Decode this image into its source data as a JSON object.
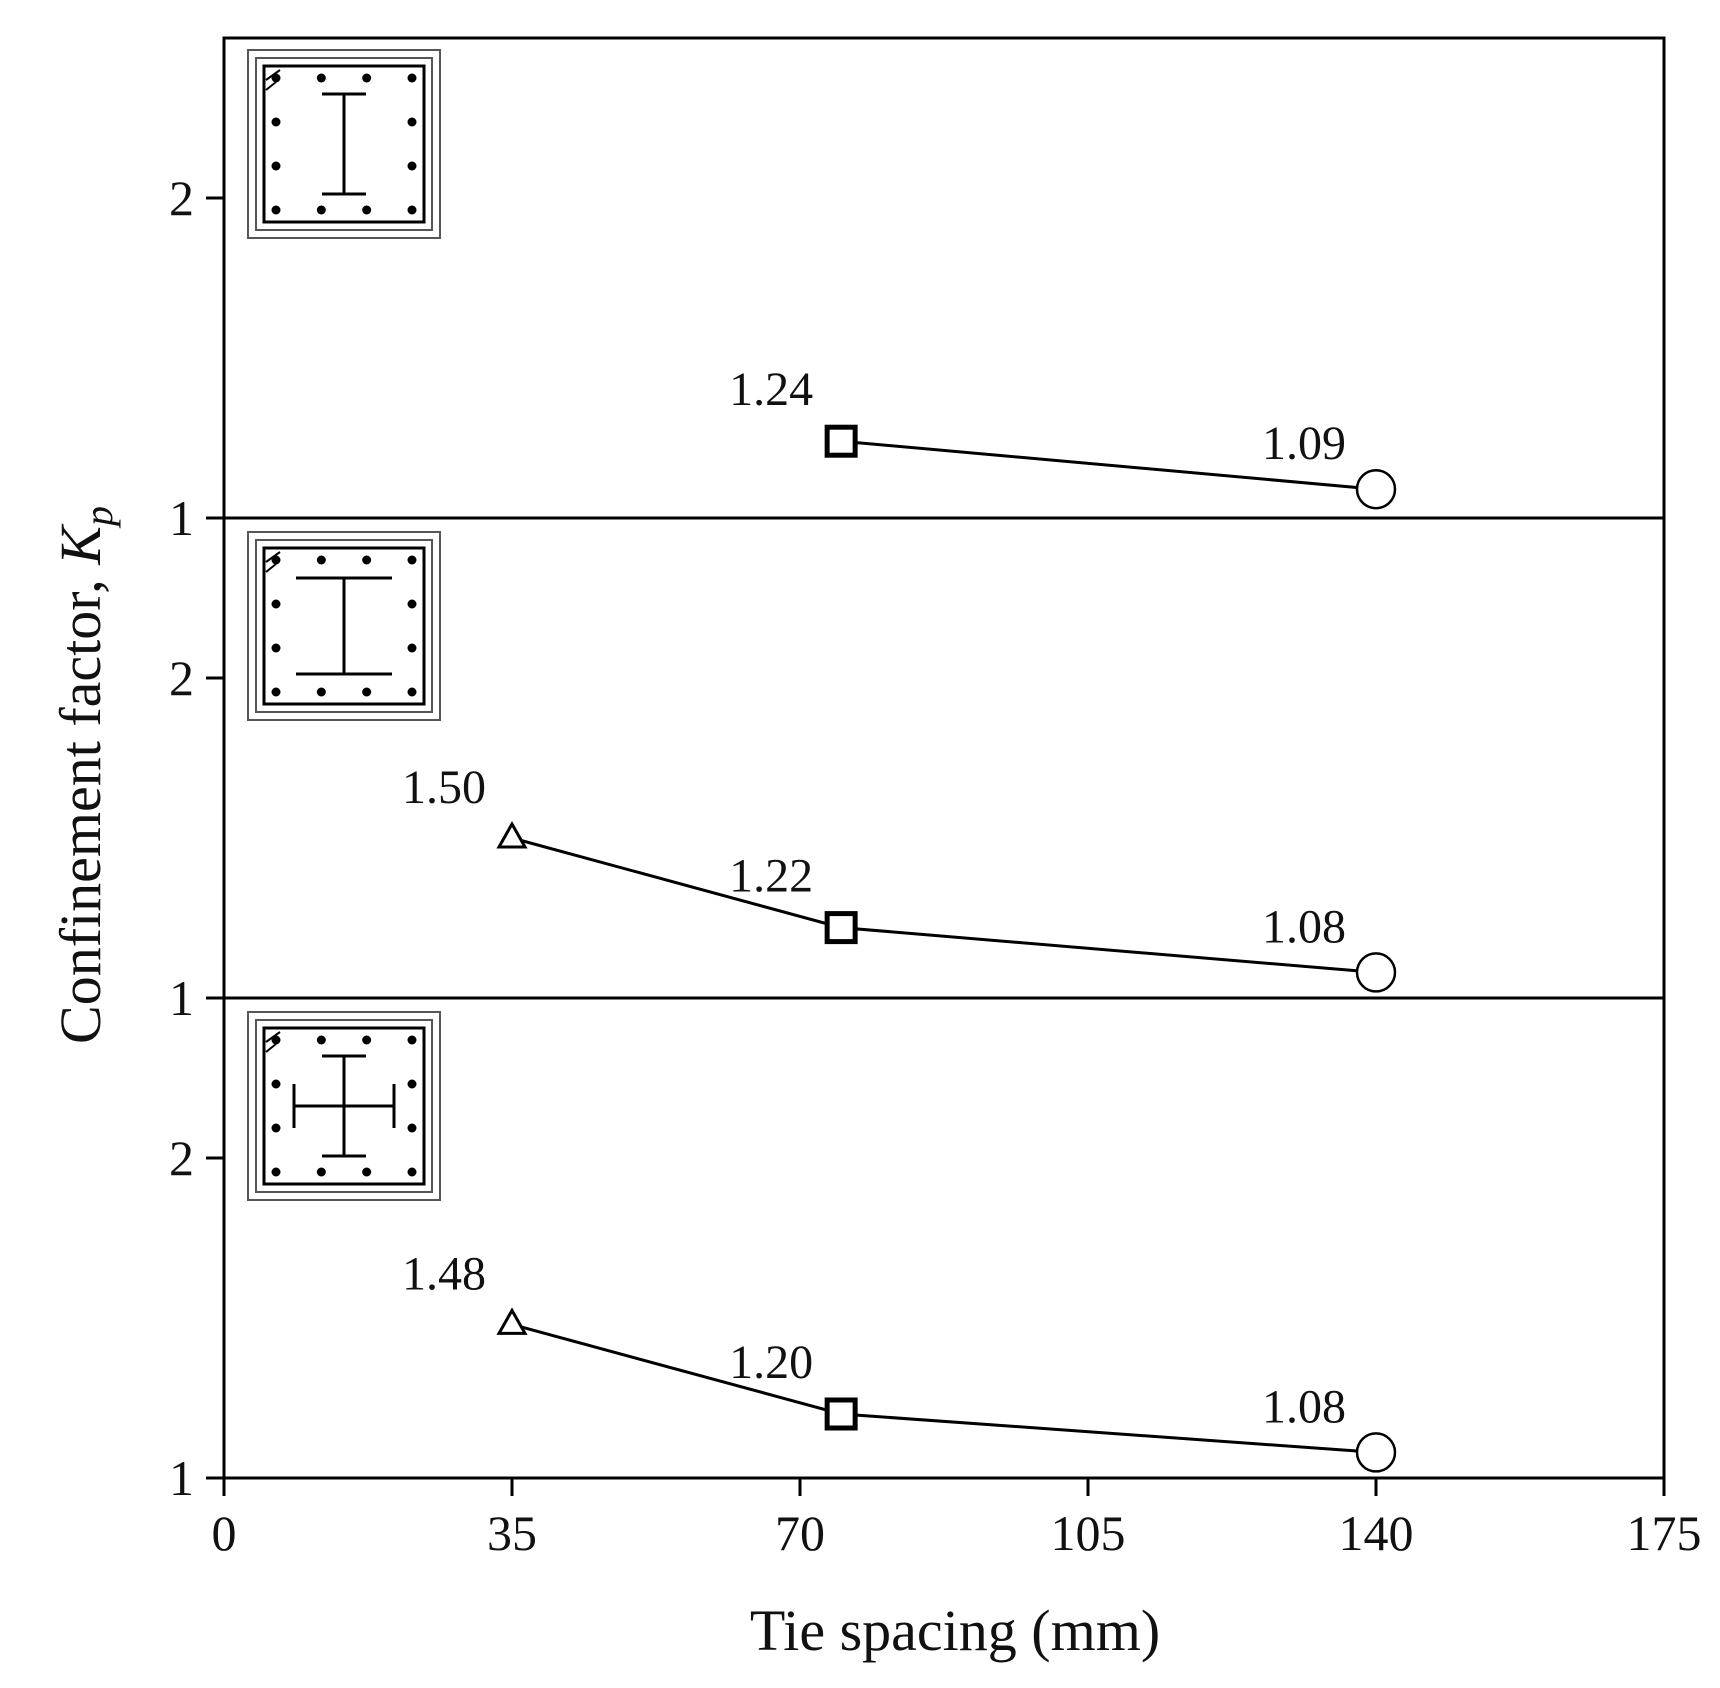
{
  "chart_data": {
    "type": "line",
    "xlabel": "Tie spacing (mm)",
    "ylabel": "Confinement factor, ",
    "ylabel_symbol": "K",
    "ylabel_subscript": "p",
    "xlim": [
      0,
      175
    ],
    "x_ticks": [
      "0",
      "35",
      "70",
      "105",
      "140",
      "175"
    ],
    "panels": [
      {
        "ylim": [
          1,
          2.5
        ],
        "y_ticks": [
          "1",
          "2"
        ],
        "icon": "i-section-narrow-icon",
        "points": [
          {
            "x": 75,
            "y": 1.24,
            "label": "1.24",
            "marker": "square"
          },
          {
            "x": 140,
            "y": 1.09,
            "label": "1.09",
            "marker": "circle"
          }
        ]
      },
      {
        "ylim": [
          1,
          2.0
        ],
        "y_ticks": [
          "1",
          "2"
        ],
        "icon": "i-section-wide-icon",
        "points": [
          {
            "x": 35,
            "y": 1.5,
            "label": "1.50",
            "marker": "triangle"
          },
          {
            "x": 75,
            "y": 1.22,
            "label": "1.22",
            "marker": "square"
          },
          {
            "x": 140,
            "y": 1.08,
            "label": "1.08",
            "marker": "circle"
          }
        ]
      },
      {
        "ylim": [
          1,
          2.0
        ],
        "y_ticks": [
          "1",
          "2"
        ],
        "icon": "cross-section-icon",
        "points": [
          {
            "x": 35,
            "y": 1.48,
            "label": "1.48",
            "marker": "triangle"
          },
          {
            "x": 75,
            "y": 1.2,
            "label": "1.20",
            "marker": "square"
          },
          {
            "x": 140,
            "y": 1.08,
            "label": "1.08",
            "marker": "circle"
          }
        ]
      }
    ]
  }
}
